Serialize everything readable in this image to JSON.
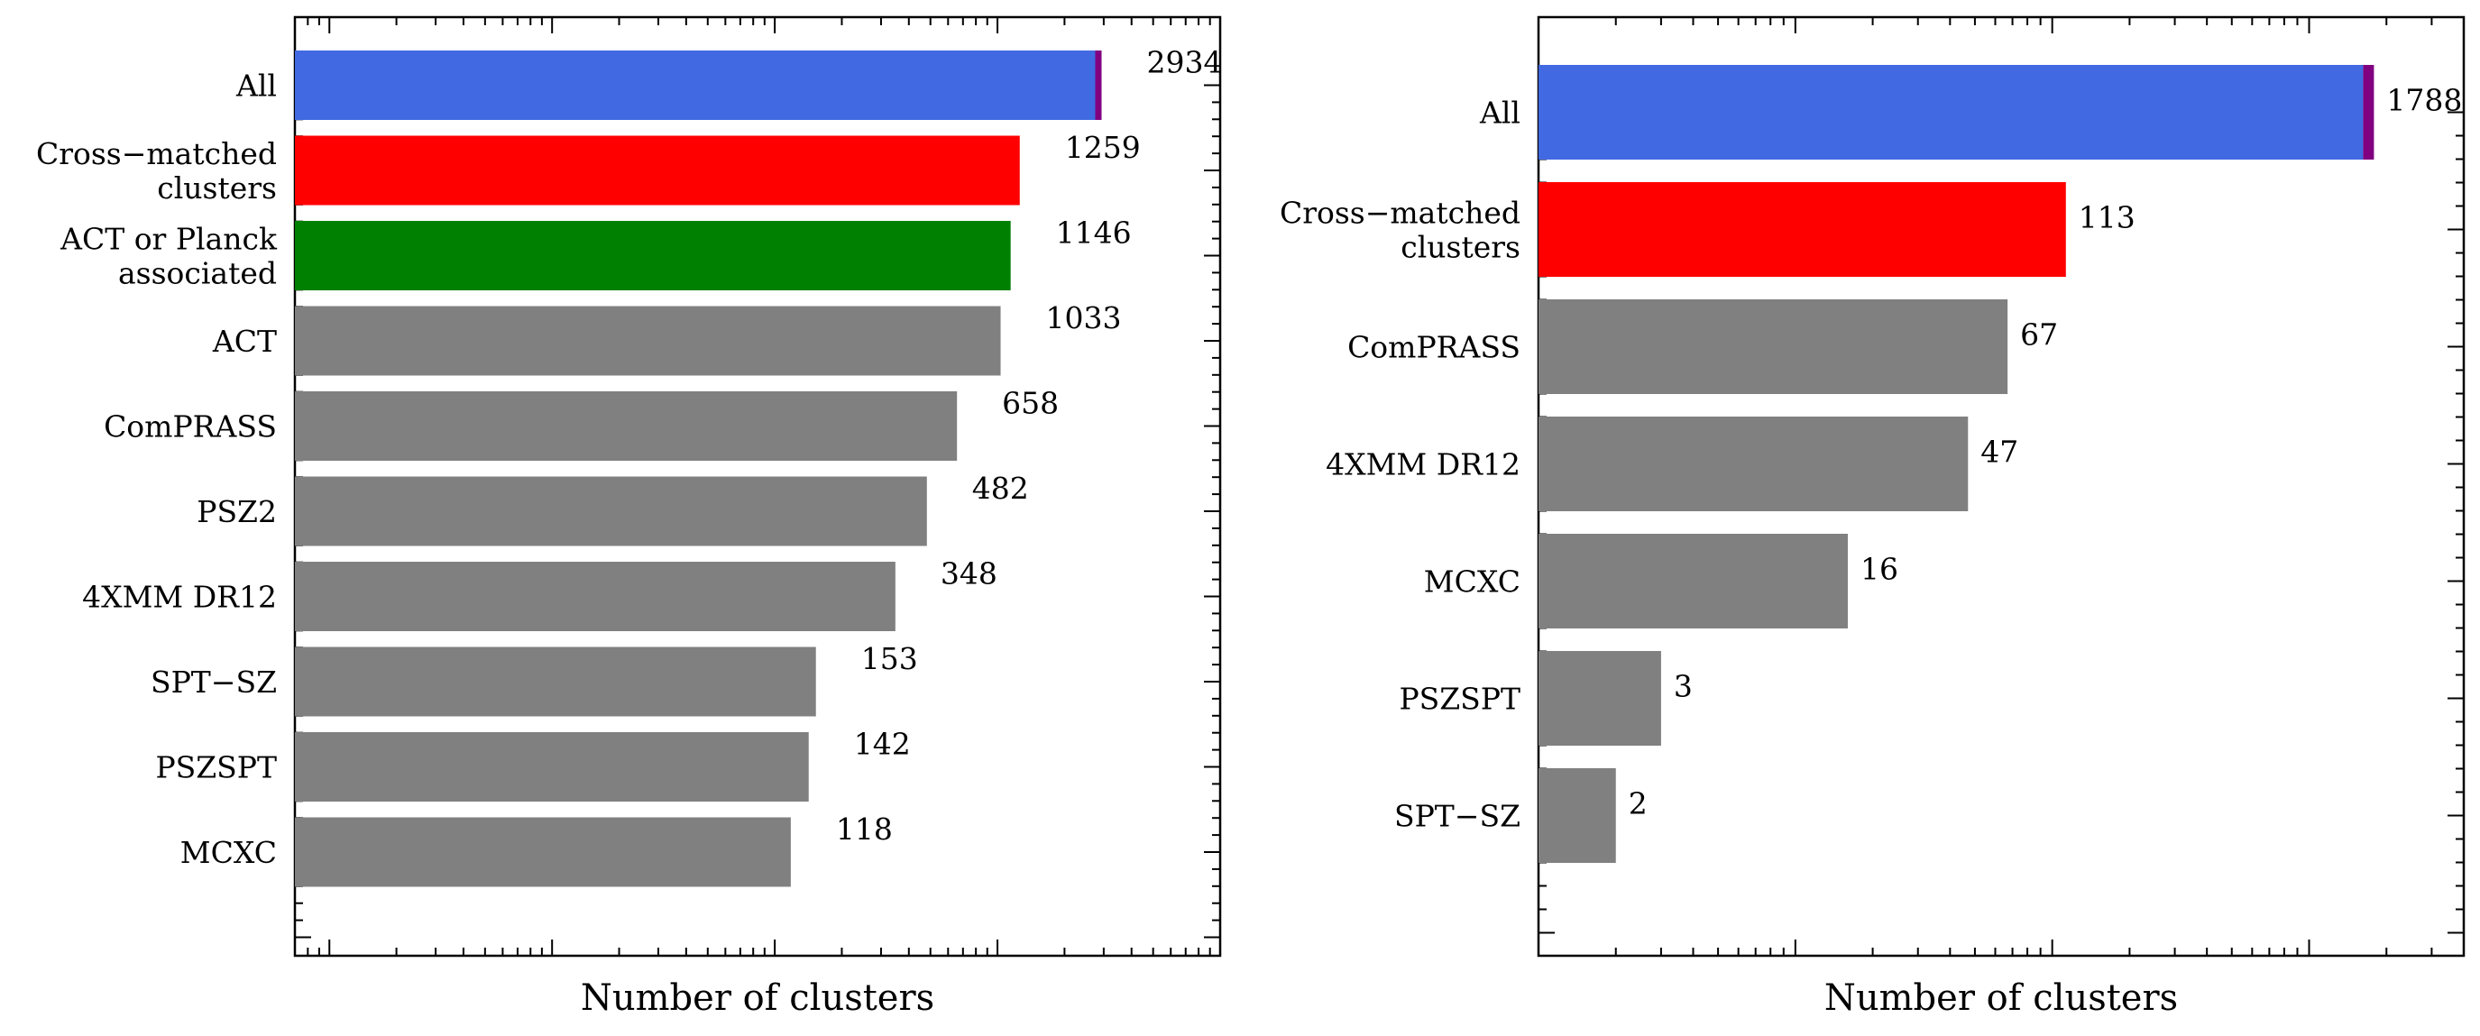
{
  "chart_data": [
    {
      "type": "bar",
      "orientation": "horizontal",
      "xscale": "log",
      "xlabel": "Number of clusters",
      "grid": false,
      "bars": [
        {
          "label": "All",
          "value": 2934,
          "value_label": "2934",
          "color": "#4169E1",
          "cap_color": "#800080"
        },
        {
          "label": "Cross−matched\nclusters",
          "value": 1259,
          "value_label": "1259",
          "color": "#FF0000"
        },
        {
          "label": "ACT or Planck\nassociated",
          "value": 1146,
          "value_label": "1146",
          "color": "#008000"
        },
        {
          "label": "ACT",
          "value": 1033,
          "value_label": "1033",
          "color": "#808080"
        },
        {
          "label": "ComPRASS",
          "value": 658,
          "value_label": "658",
          "color": "#808080"
        },
        {
          "label": "PSZ2",
          "value": 482,
          "value_label": "482",
          "color": "#808080"
        },
        {
          "label": "4XMM DR12",
          "value": 348,
          "value_label": "348",
          "color": "#808080"
        },
        {
          "label": "SPT−SZ",
          "value": 153,
          "value_label": "153",
          "color": "#808080"
        },
        {
          "label": "PSZSPT",
          "value": 142,
          "value_label": "142",
          "color": "#808080"
        },
        {
          "label": "MCXC",
          "value": 118,
          "value_label": "118",
          "color": "#808080"
        }
      ]
    },
    {
      "type": "bar",
      "orientation": "horizontal",
      "xscale": "log",
      "xlabel": "Number of clusters",
      "grid": false,
      "bars": [
        {
          "label": "All",
          "value": 1788,
          "value_label": "1788",
          "color": "#4169E1",
          "cap_color": "#800080"
        },
        {
          "label": "Cross−matched\nclusters",
          "value": 113,
          "value_label": "113",
          "color": "#FF0000"
        },
        {
          "label": "ComPRASS",
          "value": 67,
          "value_label": "67",
          "color": "#808080"
        },
        {
          "label": "4XMM DR12",
          "value": 47,
          "value_label": "47",
          "color": "#808080"
        },
        {
          "label": "MCXC",
          "value": 16,
          "value_label": "16",
          "color": "#808080"
        },
        {
          "label": "PSZSPT",
          "value": 3,
          "value_label": "3",
          "color": "#808080"
        },
        {
          "label": "SPT−SZ",
          "value": 2,
          "value_label": "2",
          "color": "#808080"
        }
      ]
    }
  ]
}
